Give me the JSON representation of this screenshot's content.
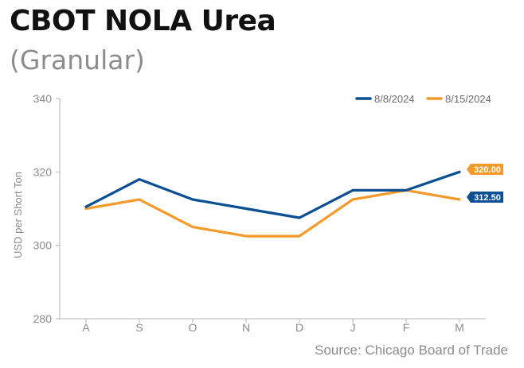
{
  "header": {
    "title": "CBOT NOLA Urea",
    "subtitle": "(Granular)"
  },
  "source": "Source: Chicago Board of Trade",
  "colors": {
    "series_1": "#0a4f94",
    "series_2": "#f39a2b",
    "axis": "#b3b3b3",
    "text": "#8a8a8a"
  },
  "chart_data": {
    "type": "line",
    "title": "CBOT NOLA Urea (Granular)",
    "xlabel": "",
    "ylabel": "USD per Short Ton",
    "categories": [
      "A",
      "S",
      "O",
      "N",
      "D",
      "J",
      "F",
      "M"
    ],
    "ylim": [
      280,
      340
    ],
    "yticks": [
      280,
      300,
      320,
      340
    ],
    "grid": false,
    "legend_position": "top-right",
    "series": [
      {
        "name": "8/8/2024",
        "values": [
          310.5,
          318,
          312.5,
          310,
          307.5,
          315,
          315,
          320
        ],
        "end_label": "320.00"
      },
      {
        "name": "8/15/2024",
        "values": [
          310,
          312.5,
          305,
          302.5,
          302.5,
          312.5,
          315,
          312.5
        ],
        "end_label": "312.50"
      }
    ]
  }
}
